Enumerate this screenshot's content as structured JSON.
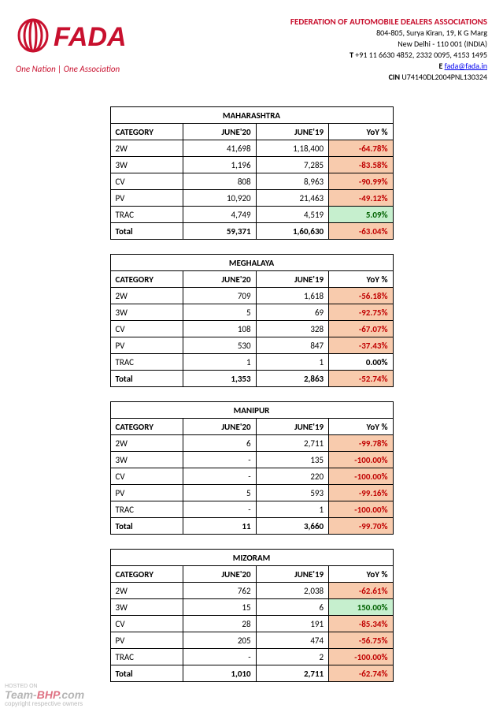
{
  "header": {
    "org_title": "FEDERATION OF AUTOMOBILE DEALERS ASSOCIATIONS",
    "addr1": "804-805, Surya Kiran, 19, K G Marg",
    "addr2": "New Delhi - 110 001 (INDIA)",
    "phone_label": "T",
    "phone": "+91 11 6630 4852, 2332 0095, 4153 1495",
    "email_label": "E",
    "email": "fada@fada.in",
    "cin_label": "CIN",
    "cin": "U74140DL2004PNL130324",
    "tagline": "One Nation | One Association",
    "logo_text": "FADA",
    "logo_color": "#C8102E"
  },
  "columns": {
    "c1": "CATEGORY",
    "c2": "JUNE'20",
    "c3": "JUNE'19",
    "c4": "YoY %"
  },
  "tables": [
    {
      "state": "MAHARASHTRA",
      "rows": [
        {
          "cat": "2W",
          "j20": "41,698",
          "j19": "1,18,400",
          "yoy": "-64.78%",
          "cls": "neg"
        },
        {
          "cat": "3W",
          "j20": "1,196",
          "j19": "7,285",
          "yoy": "-83.58%",
          "cls": "neg"
        },
        {
          "cat": "CV",
          "j20": "808",
          "j19": "8,963",
          "yoy": "-90.99%",
          "cls": "neg"
        },
        {
          "cat": "PV",
          "j20": "10,920",
          "j19": "21,463",
          "yoy": "-49.12%",
          "cls": "neg"
        },
        {
          "cat": "TRAC",
          "j20": "4,749",
          "j19": "4,519",
          "yoy": "5.09%",
          "cls": "pos"
        }
      ],
      "total": {
        "cat": "Total",
        "j20": "59,371",
        "j19": "1,60,630",
        "yoy": "-63.04%",
        "cls": "neg"
      }
    },
    {
      "state": "MEGHALAYA",
      "rows": [
        {
          "cat": "2W",
          "j20": "709",
          "j19": "1,618",
          "yoy": "-56.18%",
          "cls": "neg"
        },
        {
          "cat": "3W",
          "j20": "5",
          "j19": "69",
          "yoy": "-92.75%",
          "cls": "neg"
        },
        {
          "cat": "CV",
          "j20": "108",
          "j19": "328",
          "yoy": "-67.07%",
          "cls": "neg"
        },
        {
          "cat": "PV",
          "j20": "530",
          "j19": "847",
          "yoy": "-37.43%",
          "cls": "neg"
        },
        {
          "cat": "TRAC",
          "j20": "1",
          "j19": "1",
          "yoy": "0.00%",
          "cls": "zero"
        }
      ],
      "total": {
        "cat": "Total",
        "j20": "1,353",
        "j19": "2,863",
        "yoy": "-52.74%",
        "cls": "neg"
      }
    },
    {
      "state": "MANIPUR",
      "rows": [
        {
          "cat": "2W",
          "j20": "6",
          "j19": "2,711",
          "yoy": "-99.78%",
          "cls": "neg"
        },
        {
          "cat": "3W",
          "j20": "-",
          "j19": "135",
          "yoy": "-100.00%",
          "cls": "neg"
        },
        {
          "cat": "CV",
          "j20": "-",
          "j19": "220",
          "yoy": "-100.00%",
          "cls": "neg"
        },
        {
          "cat": "PV",
          "j20": "5",
          "j19": "593",
          "yoy": "-99.16%",
          "cls": "neg"
        },
        {
          "cat": "TRAC",
          "j20": "-",
          "j19": "1",
          "yoy": "-100.00%",
          "cls": "neg"
        }
      ],
      "total": {
        "cat": "Total",
        "j20": "11",
        "j19": "3,660",
        "yoy": "-99.70%",
        "cls": "neg"
      }
    },
    {
      "state": "MIZORAM",
      "rows": [
        {
          "cat": "2W",
          "j20": "762",
          "j19": "2,038",
          "yoy": "-62.61%",
          "cls": "neg"
        },
        {
          "cat": "3W",
          "j20": "15",
          "j19": "6",
          "yoy": "150.00%",
          "cls": "pos"
        },
        {
          "cat": "CV",
          "j20": "28",
          "j19": "191",
          "yoy": "-85.34%",
          "cls": "neg"
        },
        {
          "cat": "PV",
          "j20": "205",
          "j19": "474",
          "yoy": "-56.75%",
          "cls": "neg"
        },
        {
          "cat": "TRAC",
          "j20": "-",
          "j19": "2",
          "yoy": "-100.00%",
          "cls": "neg"
        }
      ],
      "total": {
        "cat": "Total",
        "j20": "1,010",
        "j19": "2,711",
        "yoy": "-62.74%",
        "cls": "neg"
      }
    }
  ],
  "watermark": {
    "hosted": "HOSTED ON",
    "brand1": "Team-",
    "brand2": "BHP",
    "brand3": ".com",
    "sub": "copyright respective owners"
  }
}
